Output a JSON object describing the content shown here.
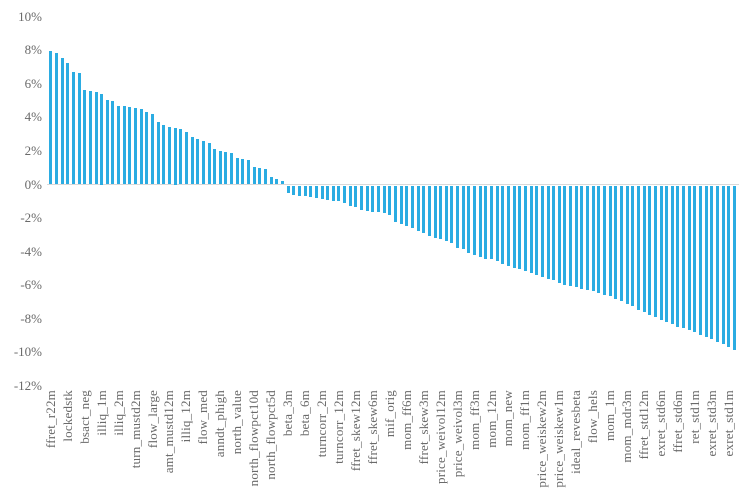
{
  "chart_data": {
    "type": "bar",
    "title": "",
    "xlabel": "",
    "ylabel": "",
    "ylim": [
      -12,
      10
    ],
    "grid": false,
    "legend": false,
    "bar_color": "#2BACE2",
    "zero_line_color": "#D9D9D9",
    "tick_label_color": "#6A6A6A",
    "label_interval": 3,
    "y_ticks": {
      "labels": [
        "10%",
        "8%",
        "6%",
        "4%",
        "2%",
        "0%",
        "-2%",
        "-4%",
        "-6%",
        "-8%",
        "-10%",
        "-12%"
      ],
      "values": [
        10,
        8,
        6,
        4,
        2,
        0,
        -2,
        -4,
        -6,
        -8,
        -10,
        -12
      ]
    },
    "categories": [
      "ffret_r22m",
      "lockedstk",
      "bsact_neg",
      "illiq_1m",
      "illiq_2m",
      "turn_mustd2m",
      "flow_large",
      "amt_mustd12m",
      "illiq_12m",
      "flow_med",
      "anndt_phigh",
      "north_value",
      "north_flowpct10d",
      "north_flowpct5d",
      "beta_3m",
      "beta_6m",
      "turncorr_2m",
      "turncorr_12m",
      "ffret_skew12m",
      "ffret_skew6m",
      "mif_orig",
      "mom_ff6m",
      "ffret_skew3m",
      "price_weivol12m",
      "price_weivol3m",
      "mom_ff3m",
      "mom_12m",
      "mom_new",
      "mom_ff1m",
      "price_weiskew2m",
      "price_weiskew1m",
      "ideal_revesbeta",
      "flow_hels",
      "mom_1m",
      "mom_mdr3m",
      "ffret_std12m",
      "exret_std6m",
      "ffret_std6m",
      "ret_std1m",
      "exret_std3m",
      "exret_std1m"
    ],
    "values": [
      7.95,
      7.85,
      7.55,
      7.25,
      6.7,
      6.62,
      5.6,
      5.55,
      5.5,
      5.42,
      5.05,
      5.0,
      4.7,
      4.65,
      4.62,
      4.58,
      4.5,
      4.3,
      4.22,
      3.7,
      3.55,
      3.45,
      3.38,
      3.28,
      3.12,
      2.85,
      2.72,
      2.6,
      2.5,
      2.1,
      2.02,
      1.95,
      1.88,
      1.6,
      1.52,
      1.45,
      1.05,
      1.0,
      0.95,
      0.45,
      0.3,
      0.2,
      -0.45,
      -0.55,
      -0.6,
      -0.65,
      -0.7,
      -0.75,
      -0.8,
      -0.85,
      -0.9,
      -0.95,
      -1.05,
      -1.2,
      -1.3,
      -1.45,
      -1.5,
      -1.55,
      -1.6,
      -1.65,
      -1.75,
      -2.15,
      -2.3,
      -2.4,
      -2.55,
      -2.7,
      -2.85,
      -3.0,
      -3.1,
      -3.2,
      -3.3,
      -3.45,
      -3.7,
      -3.8,
      -4.0,
      -4.15,
      -4.25,
      -4.35,
      -4.4,
      -4.5,
      -4.7,
      -4.8,
      -4.9,
      -5.0,
      -5.1,
      -5.2,
      -5.35,
      -5.45,
      -5.55,
      -5.65,
      -5.8,
      -5.9,
      -6.0,
      -6.05,
      -6.15,
      -6.25,
      -6.3,
      -6.4,
      -6.5,
      -6.6,
      -6.75,
      -6.9,
      -7.05,
      -7.2,
      -7.4,
      -7.55,
      -7.7,
      -7.85,
      -8.0,
      -8.1,
      -8.25,
      -8.4,
      -8.5,
      -8.6,
      -8.75,
      -8.9,
      -9.0,
      -9.15,
      -9.3,
      -9.45,
      -9.6,
      -9.8
    ]
  }
}
